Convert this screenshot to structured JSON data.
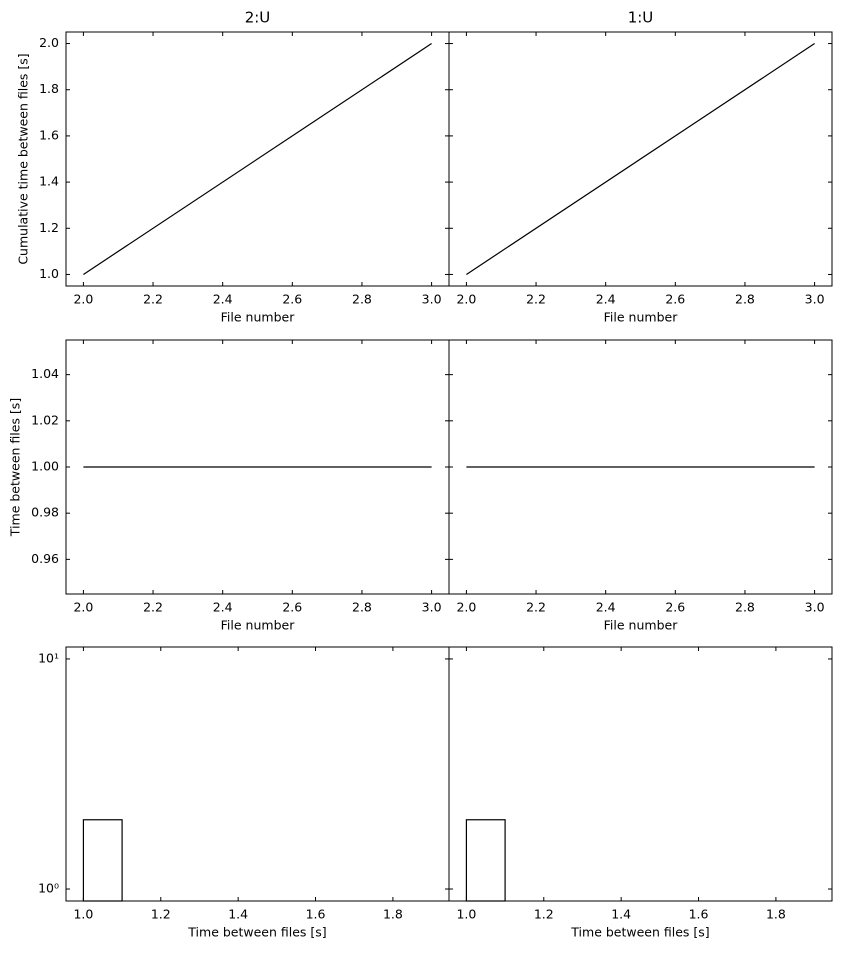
{
  "chart_data": [
    {
      "type": "line",
      "title": "2:U",
      "x_label": "File number",
      "y_label": "Cumulative time between files [s]",
      "x": [
        2,
        3
      ],
      "values": [
        1,
        2
      ],
      "color": "#000000",
      "xlim": [
        1.95,
        3.05
      ],
      "ylim": [
        0.95,
        2.05
      ],
      "xticks": [
        {
          "value": 2,
          "label": "2.0"
        },
        2.2,
        2.4,
        2.6,
        2.8,
        {
          "value": 3,
          "label": "3.0"
        }
      ],
      "yticks": [
        {
          "value": 1,
          "label": "1.0"
        },
        1.2,
        1.4,
        1.6,
        1.8,
        {
          "value": 2,
          "label": "2.0"
        }
      ]
    },
    {
      "type": "line",
      "title": "1:U",
      "x_label": "File number",
      "sharey": true,
      "x": [
        2,
        3
      ],
      "values": [
        1,
        2
      ],
      "color": "#000000",
      "xlim": [
        1.95,
        3.05
      ],
      "ylim": [
        0.95,
        2.05
      ],
      "xticks": [
        {
          "value": 2,
          "label": "2.0"
        },
        2.2,
        2.4,
        2.6,
        2.8,
        {
          "value": 3,
          "label": "3.0"
        }
      ],
      "yticks": [
        1,
        1.2,
        1.4,
        1.6,
        1.8,
        2
      ]
    },
    {
      "type": "line",
      "x_label": "File number",
      "y_label": "Time between files [s]",
      "x": [
        2,
        3
      ],
      "values": [
        1,
        1
      ],
      "color": "#000000",
      "xlim": [
        1.95,
        3.05
      ],
      "ylim": [
        0.945,
        1.055
      ],
      "xticks": [
        {
          "value": 2,
          "label": "2.0"
        },
        2.2,
        2.4,
        2.6,
        2.8,
        {
          "value": 3,
          "label": "3.0"
        }
      ],
      "yticks": [
        0.96,
        0.98,
        {
          "value": 1,
          "label": "1.00"
        },
        1.02,
        1.04
      ]
    },
    {
      "type": "line",
      "x_label": "File number",
      "sharey": true,
      "x": [
        2,
        3
      ],
      "values": [
        1,
        1
      ],
      "color": "#000000",
      "xlim": [
        1.95,
        3.05
      ],
      "ylim": [
        0.945,
        1.055
      ],
      "xticks": [
        {
          "value": 2,
          "label": "2.0"
        },
        2.2,
        2.4,
        2.6,
        2.8,
        {
          "value": 3,
          "label": "3.0"
        }
      ],
      "yticks": [
        0.96,
        0.98,
        1,
        1.02,
        1.04
      ]
    },
    {
      "type": "hist",
      "x_label": "Time between files [s]",
      "yscale": "log",
      "bins": [
        1.0,
        1.1
      ],
      "counts": [
        2
      ],
      "color": "#000000",
      "xlim": [
        0.955,
        1.945
      ],
      "ylim": [
        0.887,
        11.27
      ],
      "xticks": [
        {
          "value": 1,
          "label": "1.0"
        },
        1.2,
        1.4,
        1.6,
        1.8
      ],
      "yticks": [
        {
          "value": 1,
          "label": "10⁰"
        },
        {
          "value": 10,
          "label": "10¹"
        }
      ]
    },
    {
      "type": "hist",
      "x_label": "Time between files [s]",
      "yscale": "log",
      "sharey": true,
      "bins": [
        1.0,
        1.1
      ],
      "counts": [
        2
      ],
      "color": "#000000",
      "xlim": [
        0.955,
        1.945
      ],
      "ylim": [
        0.887,
        11.27
      ],
      "xticks": [
        {
          "value": 1,
          "label": "1.0"
        },
        1.2,
        1.4,
        1.6,
        1.8
      ],
      "yticks": [
        1,
        10
      ]
    }
  ]
}
